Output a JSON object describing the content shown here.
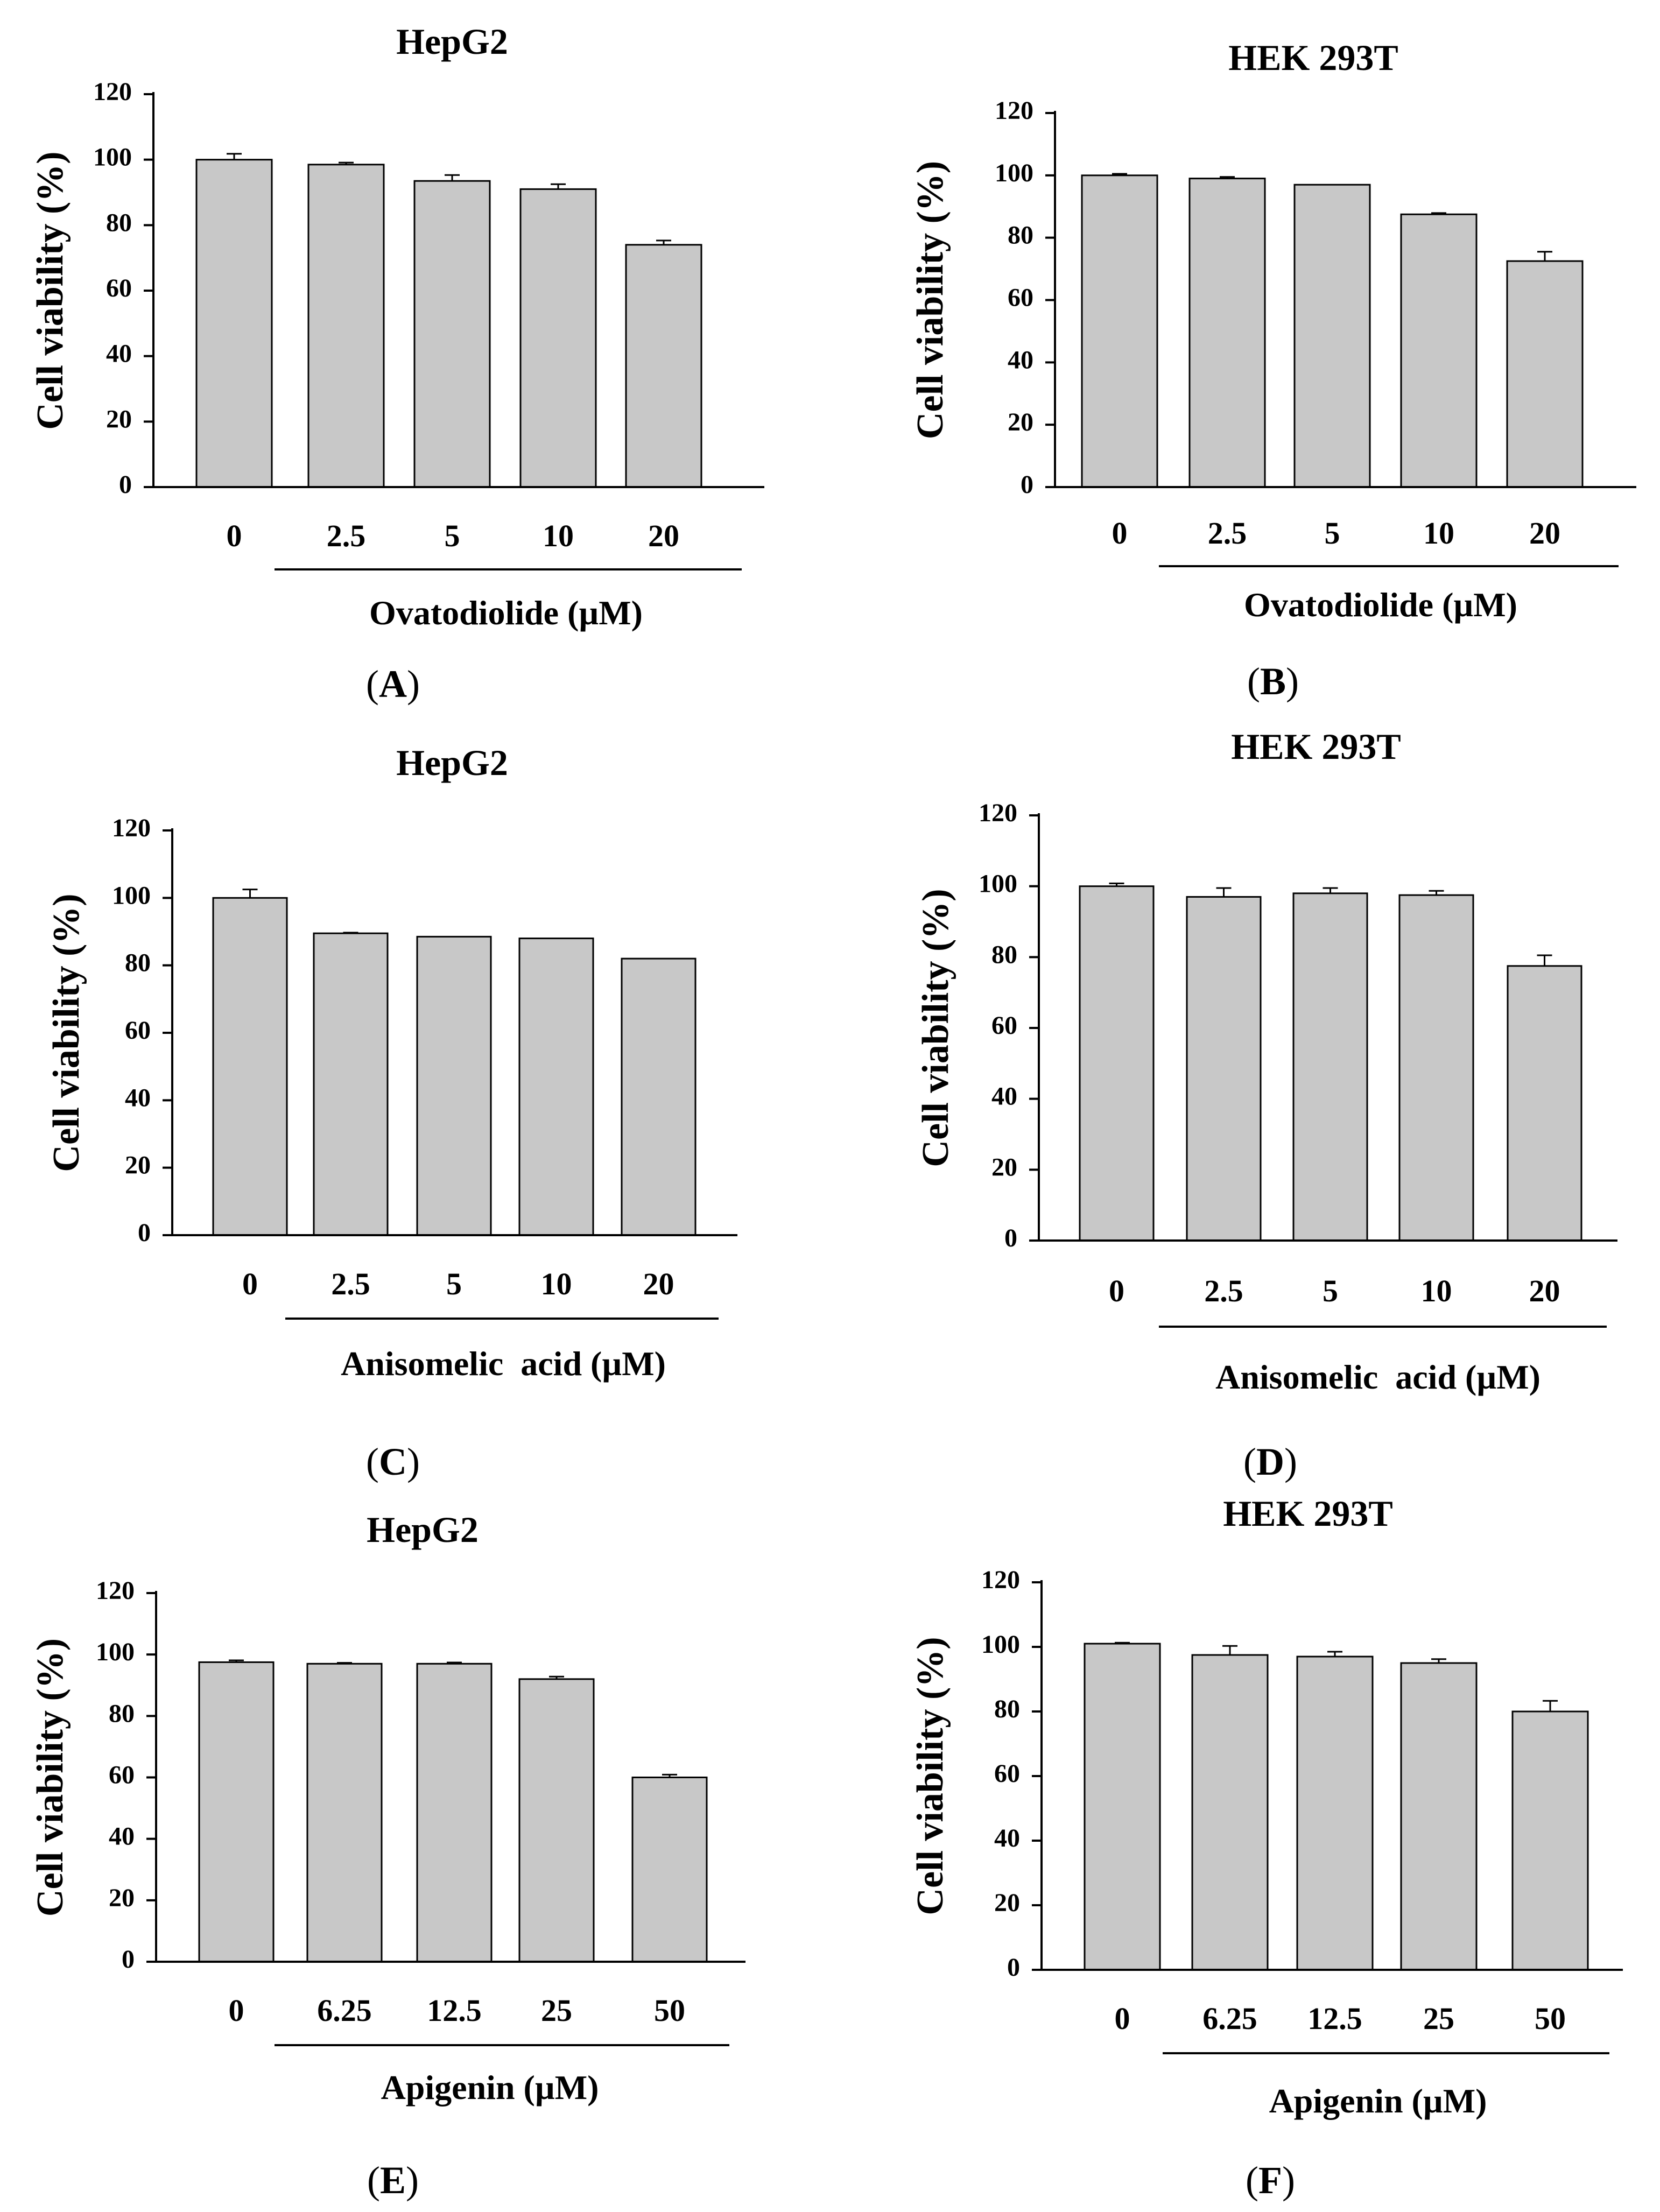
{
  "colors": {
    "bar_fill": "#c8c8c8",
    "bar_stroke": "#000000",
    "axis": "#000000",
    "background": "#ffffff"
  },
  "chart_data": [
    {
      "id": "A",
      "panel_label": "A",
      "type": "bar",
      "title": "HepG2",
      "ylabel": "Cell viability (%)",
      "xlabel": "Ovatodiolide (µM)",
      "categories": [
        "0",
        "2.5",
        "5",
        "10",
        "20"
      ],
      "values": [
        100,
        98.5,
        93.5,
        91,
        74
      ],
      "errors": [
        1.8,
        0.6,
        1.8,
        1.5,
        1.3
      ],
      "ylim": [
        0,
        120
      ],
      "yticks": [
        "0",
        "20",
        "40",
        "60",
        "80",
        "100",
        "120"
      ]
    },
    {
      "id": "B",
      "panel_label": "B",
      "type": "bar",
      "title": "HEK 293T",
      "ylabel": "Cell viability (%)",
      "xlabel": "Ovatodiolide (µM)",
      "categories": [
        "0",
        "2.5",
        "5",
        "10",
        "20"
      ],
      "values": [
        100,
        99,
        97,
        87.5,
        72.5
      ],
      "errors": [
        0.5,
        0.5,
        0,
        0.4,
        3
      ],
      "ylim": [
        0,
        120
      ],
      "yticks": [
        "0",
        "20",
        "40",
        "60",
        "80",
        "100",
        "120"
      ]
    },
    {
      "id": "C",
      "panel_label": "C",
      "type": "bar",
      "title": "HepG2",
      "ylabel": "Cell viability (%)",
      "xlabel": "Anisomelic  acid (µM)",
      "categories": [
        "0",
        "2.5",
        "5",
        "10",
        "20"
      ],
      "values": [
        100,
        89.5,
        88.5,
        88,
        82
      ],
      "errors": [
        2.5,
        0.2,
        0,
        0,
        0
      ],
      "ylim": [
        0,
        120
      ],
      "yticks": [
        "0",
        "20",
        "40",
        "60",
        "80",
        "100",
        "120"
      ]
    },
    {
      "id": "D",
      "panel_label": "D",
      "type": "bar",
      "title": "HEK 293T",
      "ylabel": "Cell viability (%)",
      "xlabel": "Anisomelic  acid (µM)",
      "categories": [
        "0",
        "2.5",
        "5",
        "10",
        "20"
      ],
      "values": [
        100,
        97,
        98,
        97.5,
        77.5
      ],
      "errors": [
        0.8,
        2.5,
        1.5,
        1.2,
        3
      ],
      "ylim": [
        0,
        120
      ],
      "yticks": [
        "0",
        "20",
        "40",
        "60",
        "80",
        "100",
        "120"
      ]
    },
    {
      "id": "E",
      "panel_label": "E",
      "type": "bar",
      "title": "HepG2",
      "ylabel": "Cell viability (%)",
      "xlabel": "Apigenin (µM)",
      "categories": [
        "0",
        "6.25",
        "12.5",
        "25",
        "50"
      ],
      "values": [
        97.5,
        97,
        97,
        92,
        60
      ],
      "errors": [
        0.6,
        0.3,
        0.4,
        0.8,
        0.9
      ],
      "ylim": [
        0,
        120
      ],
      "yticks": [
        "0",
        "20",
        "40",
        "60",
        "80",
        "100",
        "120"
      ]
    },
    {
      "id": "F",
      "panel_label": "F",
      "type": "bar",
      "title": "HEK 293T",
      "ylabel": "Cell viability (%)",
      "xlabel": "Apigenin (µM)",
      "categories": [
        "0",
        "6.25",
        "12.5",
        "25",
        "50"
      ],
      "values": [
        101,
        97.5,
        97,
        95,
        80
      ],
      "errors": [
        0.3,
        2.8,
        1.5,
        1.2,
        3.3
      ],
      "ylim": [
        0,
        120
      ],
      "yticks": [
        "0",
        "20",
        "40",
        "60",
        "80",
        "100",
        "120"
      ]
    }
  ]
}
